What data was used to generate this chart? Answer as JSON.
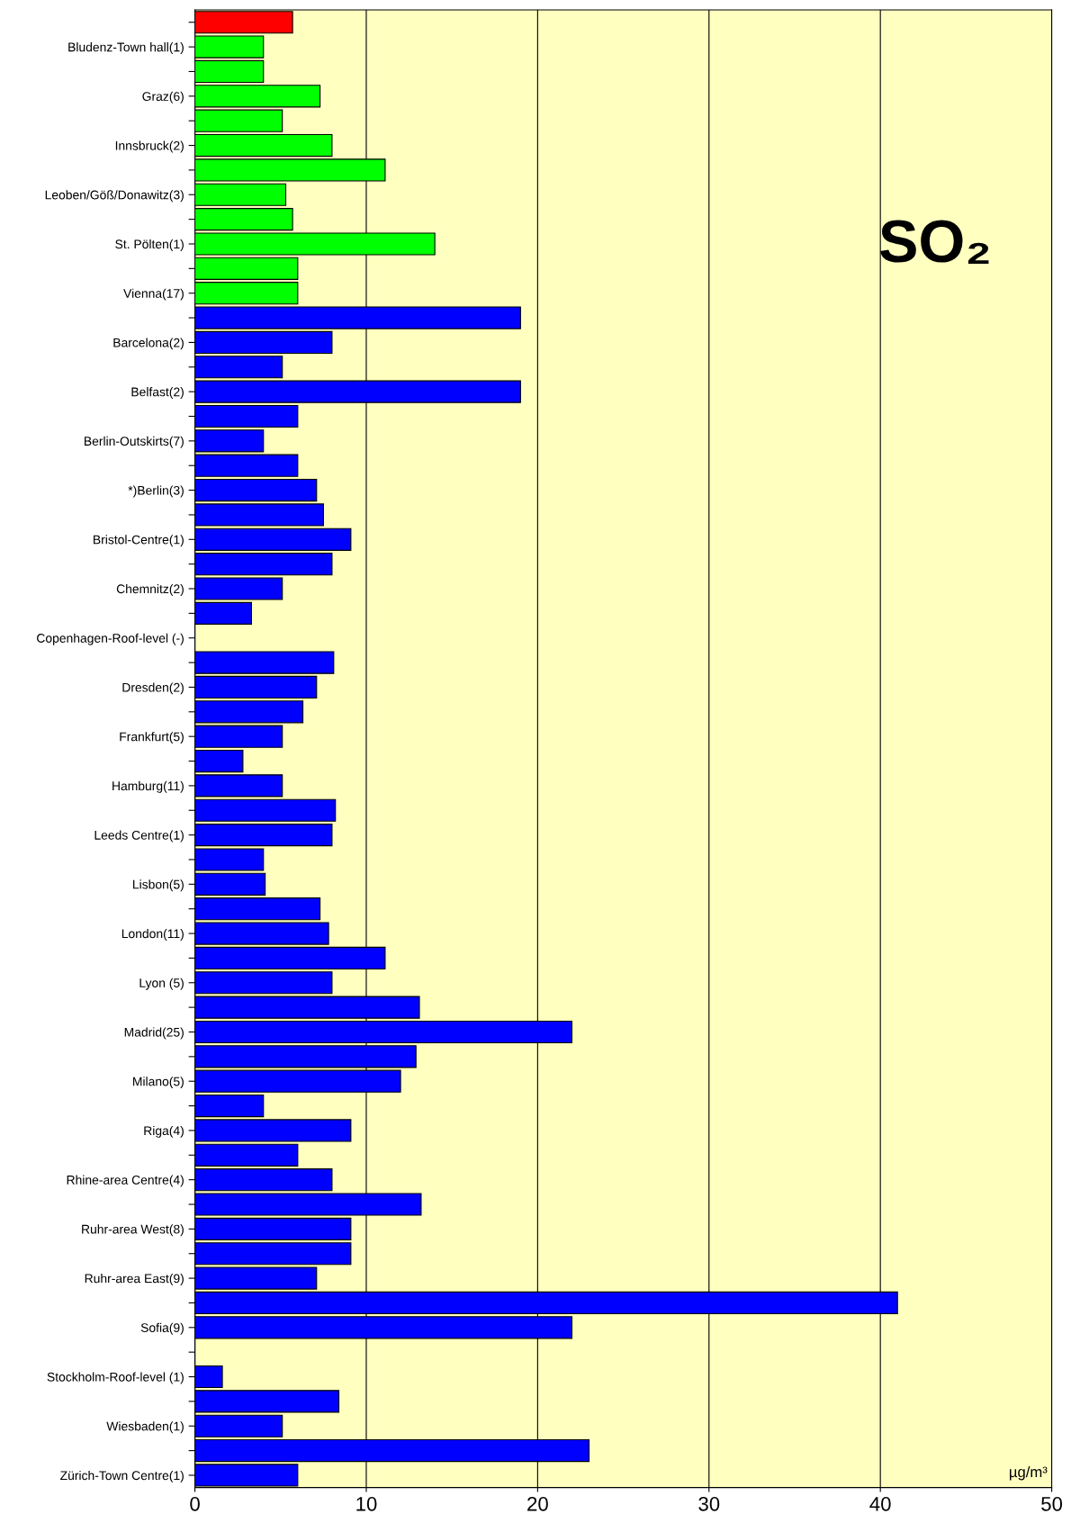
{
  "chart_data": {
    "type": "bar",
    "orientation": "horizontal",
    "categories": [
      null,
      "Bludenz-Town hall(1)",
      null,
      "Graz(6)",
      null,
      "Innsbruck(2)",
      null,
      "Leoben/Göß/Donawitz(3)",
      null,
      "St. Pölten(1)",
      null,
      "Vienna(17)",
      null,
      "Barcelona(2)",
      null,
      "Belfast(2)",
      null,
      "Berlin-Outskirts(7)",
      null,
      "*)Berlin(3)",
      null,
      "Bristol-Centre(1)",
      null,
      "Chemnitz(2)",
      null,
      "Copenhagen-Roof-level (-)",
      null,
      "Dresden(2)",
      null,
      "Frankfurt(5)",
      null,
      "Hamburg(11)",
      null,
      "Leeds Centre(1)",
      null,
      "Lisbon(5)",
      null,
      "London(11)",
      null,
      "Lyon (5)",
      null,
      "Madrid(25)",
      null,
      "Milano(5)",
      null,
      "Riga(4)",
      null,
      "Rhine-area Centre(4)",
      null,
      "Ruhr-area West(8)",
      null,
      "Ruhr-area East(9)",
      null,
      "Sofia(9)",
      null,
      "Stockholm-Roof-level (1)",
      null,
      "Wiesbaden(1)",
      null,
      "Zürich-Town Centre(1)"
    ],
    "values": [
      5.7,
      4,
      4,
      7.3,
      5.1,
      8,
      11.1,
      5.3,
      5.7,
      14,
      6,
      6,
      19,
      8,
      5.1,
      19,
      6,
      4,
      6,
      7.1,
      7.5,
      9.1,
      8,
      5.1,
      3.3,
      null,
      8.1,
      7.1,
      6.3,
      5.1,
      2.8,
      5.1,
      8.2,
      8,
      4,
      4.1,
      7.3,
      7.8,
      11.1,
      8,
      13.1,
      22,
      12.9,
      12,
      4,
      9.1,
      6,
      8,
      13.2,
      9.1,
      9.1,
      7.1,
      41,
      22,
      null,
      1.6,
      8.4,
      5.1,
      23,
      6
    ],
    "colors": [
      "#ff0000",
      "#00ff00",
      "#00ff00",
      "#00ff00",
      "#00ff00",
      "#00ff00",
      "#00ff00",
      "#00ff00",
      "#00ff00",
      "#00ff00",
      "#00ff00",
      "#00ff00",
      "#0000ff",
      "#0000ff",
      "#0000ff",
      "#0000ff",
      "#0000ff",
      "#0000ff",
      "#0000ff",
      "#0000ff",
      "#0000ff",
      "#0000ff",
      "#0000ff",
      "#0000ff",
      "#0000ff",
      "#0000ff",
      "#0000ff",
      "#0000ff",
      "#0000ff",
      "#0000ff",
      "#0000ff",
      "#0000ff",
      "#0000ff",
      "#0000ff",
      "#0000ff",
      "#0000ff",
      "#0000ff",
      "#0000ff",
      "#0000ff",
      "#0000ff",
      "#0000ff",
      "#0000ff",
      "#0000ff",
      "#0000ff",
      "#0000ff",
      "#0000ff",
      "#0000ff",
      "#0000ff",
      "#0000ff",
      "#0000ff",
      "#0000ff",
      "#0000ff",
      "#0000ff",
      "#0000ff",
      "#0000ff",
      "#0000ff",
      "#0000ff",
      "#0000ff",
      "#0000ff",
      "#0000ff"
    ],
    "xlim": [
      0,
      50
    ],
    "xticks": [
      0,
      10,
      20,
      30,
      40,
      50
    ],
    "grid": "x",
    "annotations": [
      "SO₂",
      "µg/m³"
    ]
  }
}
